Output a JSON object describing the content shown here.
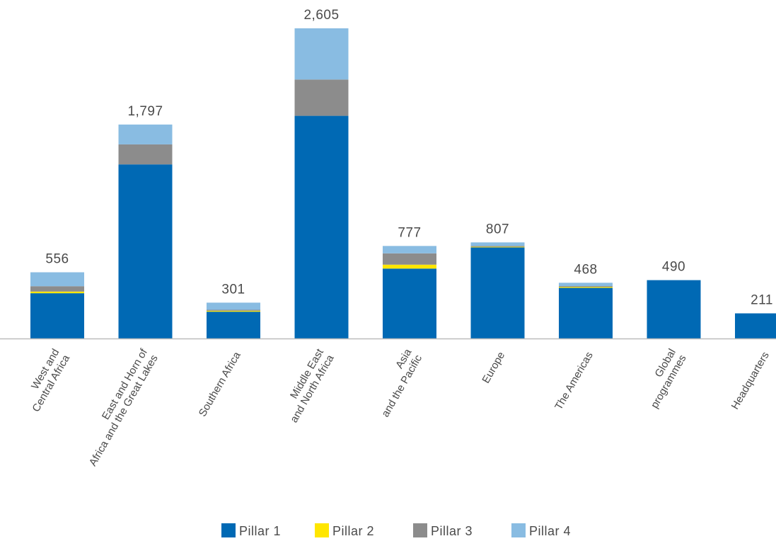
{
  "chart_data": {
    "type": "bar",
    "stacked": true,
    "categories": [
      [
        "West and",
        "Central Africa"
      ],
      [
        "East and Horn of",
        "Africa and the Great Lakes"
      ],
      [
        "Southern Africa"
      ],
      [
        "Middle East",
        "and North Africa"
      ],
      [
        "Asia",
        "and the Pacific"
      ],
      [
        "Europe"
      ],
      [
        "The Americas"
      ],
      [
        "Global",
        "programmes"
      ],
      [
        "Headquarters"
      ]
    ],
    "totals": [
      556,
      1797,
      301,
      2605,
      777,
      807,
      468,
      490,
      211
    ],
    "total_labels": [
      "556",
      "1,797",
      "301",
      "2,605",
      "777",
      "807",
      "468",
      "490",
      "211"
    ],
    "series": [
      {
        "name": "Pillar 1",
        "color": "#0069b4",
        "values": [
          380,
          1462,
          225,
          1870,
          587,
          765,
          425,
          490,
          211
        ]
      },
      {
        "name": "Pillar 2",
        "color": "#ffe600",
        "values": [
          14,
          0,
          8,
          0,
          33,
          5,
          8,
          0,
          0
        ]
      },
      {
        "name": "Pillar 3",
        "color": "#8c8c8c",
        "values": [
          45,
          168,
          8,
          305,
          95,
          7,
          7,
          0,
          0
        ]
      },
      {
        "name": "Pillar 4",
        "color": "#89bce2",
        "values": [
          117,
          167,
          60,
          430,
          62,
          30,
          28,
          0,
          0
        ]
      }
    ],
    "ylim": [
      0,
      2605
    ],
    "legend_position": "bottom",
    "grid": false
  }
}
